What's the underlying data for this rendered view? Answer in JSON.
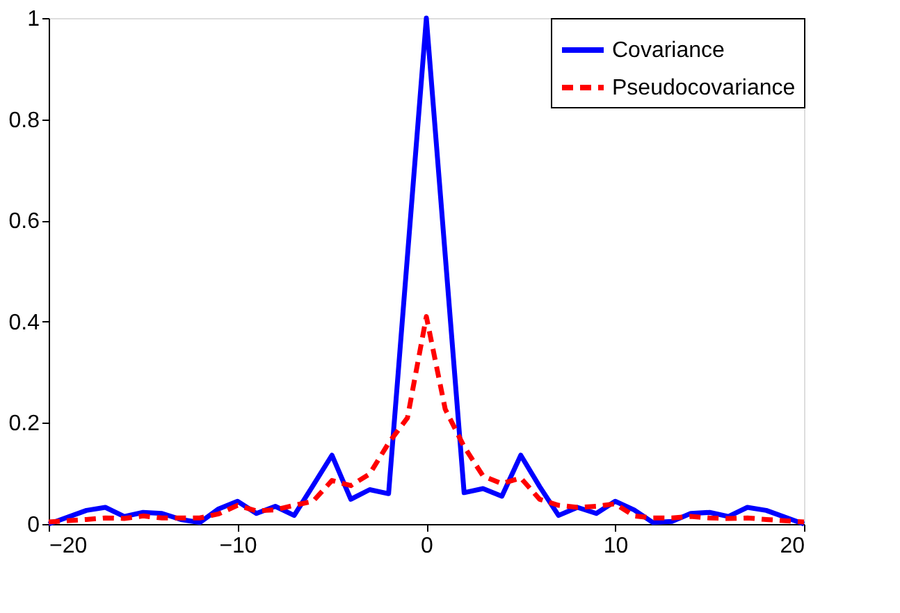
{
  "chart_data": {
    "type": "line",
    "xlim": [
      -20,
      20
    ],
    "xticks": [
      -20,
      -10,
      0,
      10,
      20
    ],
    "ylim": [
      0,
      1
    ],
    "yticks": [
      0,
      0.2,
      0.4,
      0.6,
      0.8,
      1
    ],
    "grid": false,
    "legend": "top right",
    "marker": "none",
    "series": [
      {
        "name": "Covariance",
        "color": "#0000ff",
        "line_style": "solid",
        "x": [
          -20,
          -18,
          -17,
          -16,
          -15,
          -14,
          -13,
          -12,
          -11,
          -10,
          -9,
          -8,
          -7,
          -6,
          -5,
          -4,
          -3,
          -2,
          0,
          2,
          3,
          4,
          5,
          6,
          7,
          8,
          9,
          10,
          11,
          12,
          13,
          14,
          15,
          16,
          17,
          18,
          20
        ],
        "values": [
          0,
          0.027,
          0.033,
          0.015,
          0.023,
          0.021,
          0.009,
          0.003,
          0.03,
          0.045,
          0.021,
          0.035,
          0.017,
          0.076,
          0.136,
          0.049,
          0.068,
          0.06,
          1,
          0.062,
          0.07,
          0.055,
          0.136,
          0.074,
          0.017,
          0.033,
          0.021,
          0.045,
          0.028,
          0.003,
          0.005,
          0.021,
          0.023,
          0.015,
          0.033,
          0.027,
          0
        ]
      },
      {
        "name": "Pseudocovariance",
        "color": "#ff0000",
        "line_style": "dashed",
        "x": [
          -20,
          -18,
          -17,
          -16,
          -15,
          -14,
          -13,
          -12,
          -11,
          -10,
          -9,
          -8,
          -7,
          -6,
          -5,
          -4,
          -3,
          -2,
          -1,
          0,
          1,
          2,
          3,
          4,
          5,
          6,
          7,
          8,
          9,
          10,
          11,
          12,
          13,
          14,
          15,
          16,
          17,
          18,
          20
        ],
        "values": [
          0.004,
          0.009,
          0.012,
          0.011,
          0.016,
          0.012,
          0.012,
          0.012,
          0.02,
          0.037,
          0.026,
          0.028,
          0.037,
          0.045,
          0.086,
          0.076,
          0.099,
          0.16,
          0.21,
          0.41,
          0.227,
          0.153,
          0.095,
          0.08,
          0.091,
          0.049,
          0.037,
          0.033,
          0.035,
          0.04,
          0.016,
          0.012,
          0.012,
          0.015,
          0.012,
          0.011,
          0.012,
          0.009,
          0.004
        ]
      }
    ]
  }
}
